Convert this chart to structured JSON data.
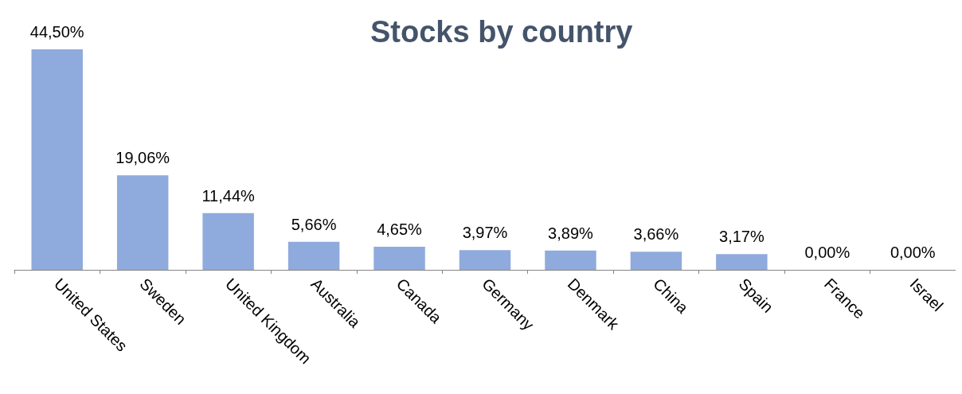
{
  "chart_data": {
    "type": "bar",
    "title": "Stocks by country",
    "categories": [
      "United States",
      "Sweden",
      "United Kingdom",
      "Australia",
      "Canada",
      "Germany",
      "Denmark",
      "China",
      "Spain",
      "France",
      "Israel"
    ],
    "values": [
      44.5,
      19.06,
      11.44,
      5.66,
      4.65,
      3.97,
      3.89,
      3.66,
      3.17,
      0,
      0
    ],
    "value_labels": [
      "44,50%",
      "19,06%",
      "11,44%",
      "5,66%",
      "4,65%",
      "3,97%",
      "3,89%",
      "3,66%",
      "3,17%",
      "0,00%",
      "0,00%"
    ],
    "color": "#8faadc"
  }
}
